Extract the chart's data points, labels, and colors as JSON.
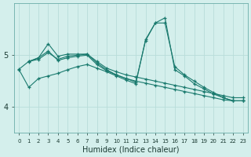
{
  "xlabel": "Humidex (Indice chaleur)",
  "bg_color": "#d4efec",
  "grid_color": "#b8ddd9",
  "line_color": "#1a7a6e",
  "xlim": [
    -0.5,
    23.5
  ],
  "ylim": [
    3.85,
    5.8
  ],
  "yticks": [
    4,
    5
  ],
  "xticks": [
    0,
    1,
    2,
    3,
    4,
    5,
    6,
    7,
    8,
    9,
    10,
    11,
    12,
    13,
    14,
    15,
    16,
    17,
    18,
    19,
    20,
    21,
    22,
    23
  ],
  "series": [
    {
      "x": [
        0,
        1,
        2,
        3,
        4,
        5,
        6,
        7,
        8,
        9,
        10,
        11,
        12,
        13,
        14,
        15,
        16,
        17,
        18,
        19,
        20,
        21,
        22,
        23
      ],
      "y": [
        4.73,
        4.88,
        4.92,
        5.05,
        4.92,
        4.98,
        5.0,
        5.02,
        4.88,
        4.75,
        4.68,
        4.62,
        4.58,
        4.54,
        4.5,
        4.46,
        4.42,
        4.38,
        4.34,
        4.3,
        4.26,
        4.22,
        4.18,
        4.18
      ]
    },
    {
      "x": [
        1,
        2,
        3,
        4,
        5,
        6,
        7,
        8,
        9,
        10,
        11,
        12,
        13,
        14,
        15,
        16,
        17,
        18,
        19,
        20,
        21,
        22,
        23
      ],
      "y": [
        4.87,
        4.95,
        5.22,
        4.98,
        5.02,
        5.02,
        5.02,
        4.85,
        4.72,
        4.62,
        4.55,
        4.5,
        4.46,
        4.42,
        4.38,
        4.34,
        4.3,
        4.26,
        4.22,
        4.18,
        4.14,
        4.12,
        4.12
      ]
    },
    {
      "x": [
        0,
        1,
        2,
        3,
        4,
        5,
        6,
        7,
        8,
        9,
        10,
        11,
        12,
        13,
        14,
        15,
        16,
        17,
        18,
        19,
        20,
        21,
        22,
        23
      ],
      "y": [
        4.72,
        4.38,
        4.55,
        4.6,
        4.65,
        4.72,
        4.78,
        4.82,
        4.75,
        4.68,
        4.6,
        4.52,
        4.45,
        5.3,
        5.62,
        5.62,
        4.78,
        4.62,
        4.5,
        4.38,
        4.28,
        4.18,
        4.12,
        4.12
      ]
    },
    {
      "x": [
        1,
        2,
        3,
        4,
        5,
        6,
        7,
        8,
        9,
        10,
        11,
        12,
        13,
        14,
        15,
        16,
        17,
        18,
        19,
        20,
        21,
        22,
        23
      ],
      "y": [
        4.88,
        4.95,
        5.08,
        4.9,
        4.95,
        4.98,
        5.0,
        4.82,
        4.7,
        4.62,
        4.55,
        4.48,
        5.28,
        5.62,
        5.72,
        4.72,
        4.6,
        4.45,
        4.35,
        4.25,
        4.18,
        4.12,
        4.12
      ]
    }
  ]
}
